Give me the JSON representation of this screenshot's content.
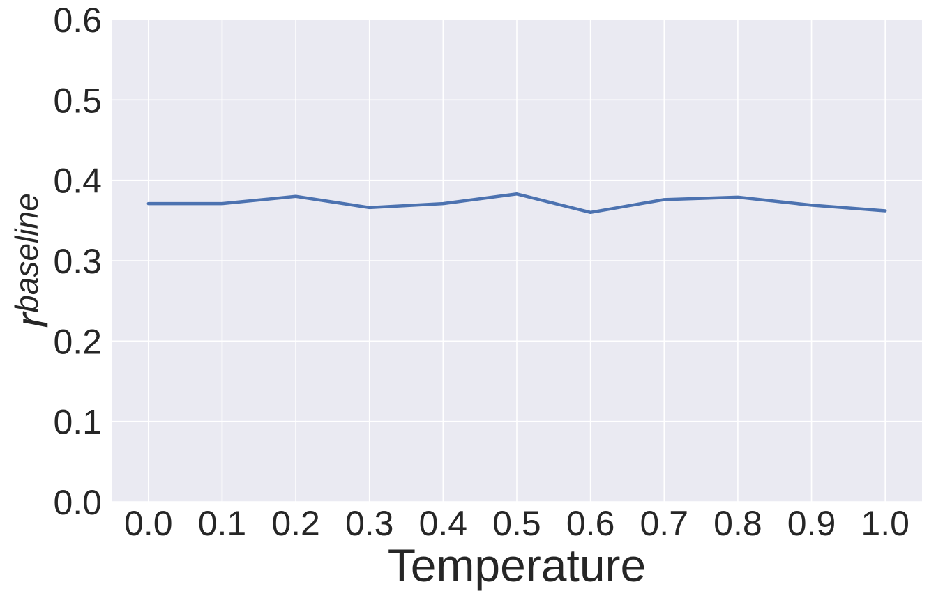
{
  "chart_data": {
    "type": "line",
    "title": "",
    "xlabel": "Temperature",
    "ylabel": {
      "main": "r",
      "subscript": "baseline"
    },
    "x": [
      0.0,
      0.1,
      0.2,
      0.3,
      0.4,
      0.5,
      0.6,
      0.7,
      0.8,
      0.9,
      1.0
    ],
    "xticks": [
      "0.0",
      "0.1",
      "0.2",
      "0.3",
      "0.4",
      "0.5",
      "0.6",
      "0.7",
      "0.8",
      "0.9",
      "1.0"
    ],
    "yticks": [
      "0.0",
      "0.1",
      "0.2",
      "0.3",
      "0.4",
      "0.5",
      "0.6"
    ],
    "ytick_values": [
      0.0,
      0.1,
      0.2,
      0.3,
      0.4,
      0.5,
      0.6
    ],
    "xlim": [
      -0.05,
      1.05
    ],
    "ylim": [
      0.0,
      0.6
    ],
    "grid": true,
    "legend": "none",
    "series": [
      {
        "values": [
          0.371,
          0.371,
          0.38,
          0.366,
          0.371,
          0.383,
          0.36,
          0.376,
          0.379,
          0.369,
          0.362
        ],
        "color": "#4c72b0"
      }
    ],
    "colors": {
      "plot_background": "#eaeaf2",
      "grid": "#ffffff",
      "text": "#262626"
    }
  }
}
